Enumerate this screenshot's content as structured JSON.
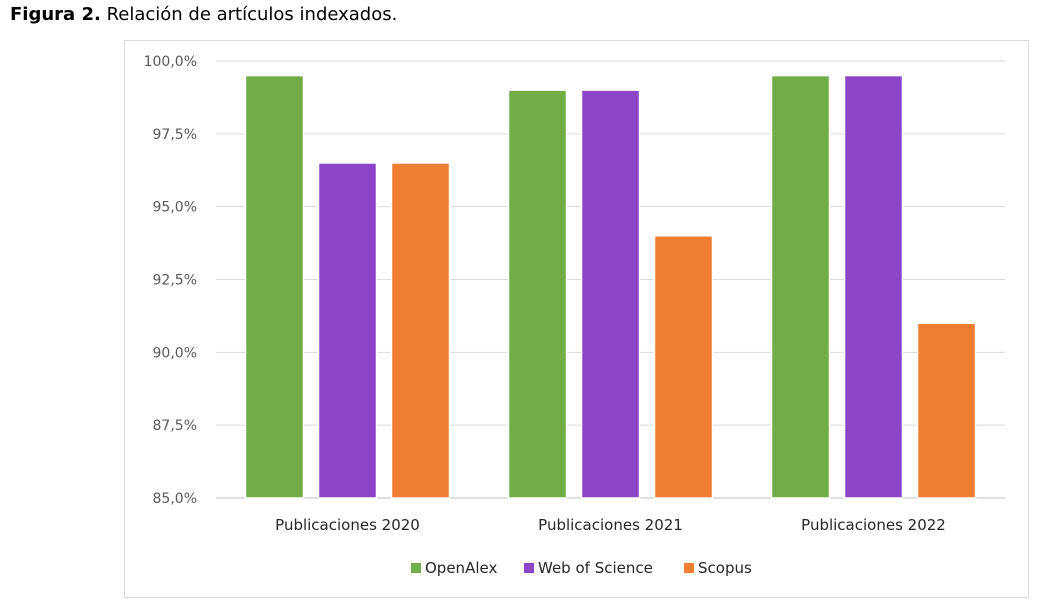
{
  "caption": {
    "label": "Figura 2.",
    "text": "Relación de artículos indexados."
  },
  "chart_data": {
    "type": "bar",
    "categories": [
      "Publicaciones 2020",
      "Publicaciones 2021",
      "Publicaciones 2022"
    ],
    "series": [
      {
        "name": "OpenAlex",
        "color": "#70ad47",
        "values": [
          99.5,
          99.0,
          99.5
        ]
      },
      {
        "name": "Web of Science",
        "color": "#8e44c8",
        "values": [
          96.5,
          99.0,
          99.5
        ]
      },
      {
        "name": "Scopus",
        "color": "#ed7d31",
        "values": [
          96.5,
          94.0,
          91.0
        ]
      }
    ],
    "ylim": [
      85,
      100
    ],
    "yticks": [
      "85,0%",
      "87,5%",
      "90,0%",
      "92,5%",
      "95,0%",
      "97,5%",
      "100,0%"
    ],
    "ytick_values": [
      85,
      87.5,
      90,
      92.5,
      95,
      97.5,
      100
    ],
    "grid": true,
    "legend": "bottom",
    "xlabel": "",
    "ylabel": ""
  }
}
